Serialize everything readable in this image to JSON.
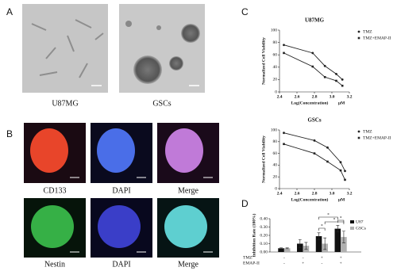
{
  "panel_labels": [
    "A",
    "B",
    "C",
    "D"
  ],
  "panel_a": {
    "captions": [
      "U87MG",
      "GSCs"
    ]
  },
  "panel_b": {
    "captions": [
      [
        "CD133",
        "DAPI",
        "Merge"
      ],
      [
        "Nestin",
        "DAPI",
        "Merge"
      ]
    ]
  },
  "chart_data": [
    {
      "type": "line",
      "title": "U87MG",
      "x_label": "Log(Concentration)",
      "x_unit": "μM",
      "y_label": "Normalized Cell Viability",
      "xlim": [
        2.4,
        3.2
      ],
      "xticks": [
        2.4,
        2.6,
        2.8,
        {
          "value": 3,
          "label": "3.0"
        },
        3.2
      ],
      "ylim": [
        0,
        100
      ],
      "yticks": [
        0,
        20,
        40,
        60,
        80,
        100
      ],
      "series": [
        {
          "name": "TMZ",
          "color": "#222222",
          "x": [
            2.45,
            2.78,
            2.92,
            3.05,
            3.12
          ],
          "values": [
            76,
            63,
            42,
            29,
            20
          ]
        },
        {
          "name": "TMZ+EMAP-II",
          "color": "#222222",
          "x": [
            2.45,
            2.78,
            2.92,
            3.05,
            3.12
          ],
          "values": [
            63,
            41,
            24,
            18,
            10
          ]
        }
      ]
    },
    {
      "type": "line",
      "title": "GSCs",
      "x_label": "Log(Concentration)",
      "x_unit": "μM",
      "y_label": "Normalized Cell Viability",
      "xlim": [
        2.4,
        3.2
      ],
      "xticks": [
        2.4,
        2.6,
        2.8,
        {
          "value": 3,
          "label": "3.0"
        },
        3.2
      ],
      "ylim": [
        0,
        100
      ],
      "yticks": [
        0,
        20,
        40,
        60,
        80,
        100
      ],
      "series": [
        {
          "name": "TMZ",
          "color": "#222222",
          "x": [
            2.45,
            2.8,
            2.95,
            3.1,
            3.15
          ],
          "values": [
            95,
            82,
            70,
            45,
            30
          ]
        },
        {
          "name": "TMZ+EMAP-II",
          "color": "#222222",
          "x": [
            2.45,
            2.8,
            2.95,
            3.1,
            3.15
          ],
          "values": [
            76,
            60,
            46,
            31,
            15
          ]
        }
      ]
    },
    {
      "type": "bar",
      "y_label": "Inhibition Rate (100%)",
      "ylim": [
        0,
        0.4
      ],
      "yticks": [
        {
          "value": 0,
          "label": "0.00"
        },
        {
          "value": 0.1,
          "label": "0.10"
        },
        {
          "value": 0.2,
          "label": "0.20"
        },
        {
          "value": 0.3,
          "label": "0.30"
        },
        {
          "value": 0.4,
          "label": "0.40"
        }
      ],
      "categories": [
        null,
        null,
        null,
        null
      ],
      "series": [
        {
          "name": "U87",
          "color": "#111111",
          "values": [
            0.045,
            0.1,
            0.19,
            0.28
          ],
          "errors": [
            0.005,
            0.05,
            0.04,
            0.04
          ]
        },
        {
          "name": "GSCs",
          "color": "#b0b0b0",
          "values": [
            0.045,
            0.075,
            0.1,
            0.18
          ],
          "errors": [
            0.005,
            0.04,
            0.07,
            0.07
          ]
        }
      ],
      "row_labels": [
        "TMZ",
        "EMAP-II"
      ],
      "conditions": [
        [
          "-",
          "-",
          "+",
          "+"
        ],
        [
          "-",
          "+",
          "-",
          "+"
        ]
      ],
      "annotations": [
        "*",
        "*",
        "*",
        "*"
      ]
    }
  ]
}
